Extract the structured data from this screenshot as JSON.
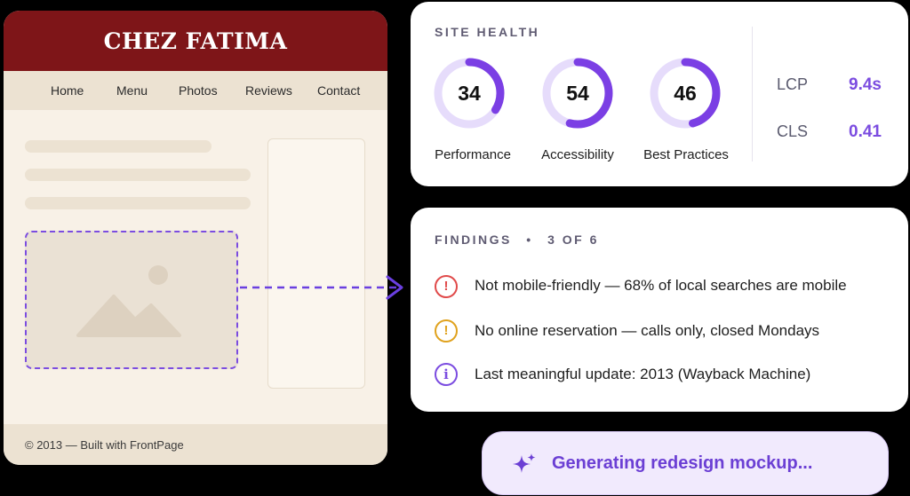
{
  "old_site": {
    "title": "CHEZ FATIMA",
    "nav": [
      "Home",
      "Menu",
      "Photos",
      "Reviews",
      "Contact"
    ],
    "footer": "© 2013 — Built with FrontPage"
  },
  "site_health": {
    "heading": "SITE HEALTH",
    "scores": [
      {
        "label": "Performance",
        "value": "34",
        "fraction": 0.34
      },
      {
        "label": "Accessibility",
        "value": "54",
        "fraction": 0.54
      },
      {
        "label": "Best Practices",
        "value": "46",
        "fraction": 0.46
      }
    ],
    "metrics": [
      {
        "name": "LCP",
        "value": "9.4s"
      },
      {
        "name": "CLS",
        "value": "0.41"
      }
    ],
    "colors": {
      "ring": "#7b3fe4",
      "track": "#e6dcfb"
    }
  },
  "findings": {
    "heading": "FINDINGS",
    "separator": "•",
    "count": "3 OF 6",
    "items": [
      {
        "icon": "error-icon",
        "glyph": "!",
        "color": "#e04a4a",
        "text": "Not mobile-friendly — 68% of local searches are mobile"
      },
      {
        "icon": "warning-icon",
        "glyph": "!",
        "color": "#e0a21e",
        "text": "No online reservation — calls only, closed Mondays"
      },
      {
        "icon": "info-icon",
        "glyph": "i",
        "color": "#7b4ce0",
        "text": "Last meaningful update: 2013 (Wayback Machine)"
      }
    ]
  },
  "status": {
    "icon": "sparkle-icon",
    "text": "Generating redesign mockup..."
  }
}
